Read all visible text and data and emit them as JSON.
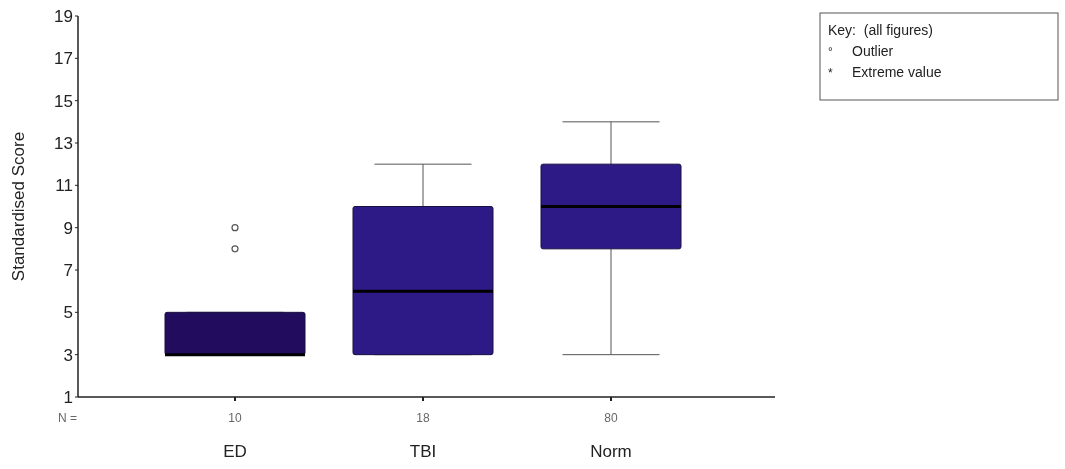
{
  "chart_data": {
    "type": "box",
    "ylabel": "Standardised Score",
    "categories": [
      "ED",
      "TBI",
      "Norm"
    ],
    "colors": [
      "#220c5e",
      "#2e1a86",
      "#2e1a86"
    ],
    "boxes": [
      {
        "low": 3,
        "q1": 3,
        "median": 3,
        "q3": 5,
        "high": 5,
        "outliers": [
          8,
          9
        ]
      },
      {
        "low": 3,
        "q1": 3,
        "median": 6,
        "q3": 10,
        "high": 12
      },
      {
        "low": 3,
        "q1": 8,
        "median": 10,
        "q3": 12,
        "high": 14
      }
    ],
    "ylim": [
      1,
      19
    ],
    "yticks": [
      1,
      3,
      5,
      7,
      9,
      11,
      13,
      15,
      17,
      19
    ],
    "grid": false,
    "annotations": [
      "N =",
      {
        "text": "10",
        "x": "ED"
      },
      {
        "text": "18",
        "x": "TBI"
      },
      {
        "text": "80",
        "x": "Norm"
      },
      "Key:  (all figures)",
      "°",
      "Outlier",
      "*",
      "Extreme value"
    ]
  }
}
